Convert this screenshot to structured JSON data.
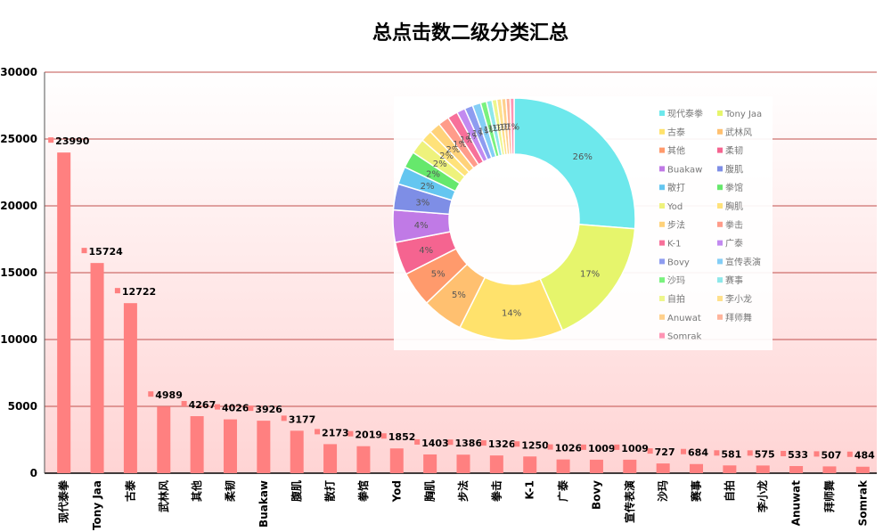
{
  "chart_data": [
    {
      "type": "bar",
      "title": "总点击数二级分类汇总",
      "ylim": [
        0,
        30000
      ],
      "yticks": [
        0,
        5000,
        10000,
        15000,
        20000,
        25000,
        30000
      ],
      "grid": true,
      "bar_color": "#ff8080",
      "grid_color": "#c0504d",
      "categories": [
        "现代泰拳",
        "Tony Jaa",
        "古泰",
        "武林风",
        "其他",
        "柔韧",
        "Buakaw",
        "腹肌",
        "散打",
        "拳馆",
        "Yod",
        "胸肌",
        "步法",
        "拳击",
        "K-1",
        "广泰",
        "Bovy",
        "宣传表演",
        "沙玛",
        "赛事",
        "自拍",
        "李小龙",
        "Anuwat",
        "拜师舞",
        "Somrak"
      ],
      "values": [
        23990,
        15724,
        12722,
        4989,
        4267,
        4026,
        3926,
        3177,
        2173,
        2019,
        1852,
        1403,
        1386,
        1326,
        1250,
        1026,
        1009,
        1009,
        727,
        684,
        581,
        575,
        533,
        507,
        484
      ],
      "value_labels": [
        "23990",
        "15724",
        "12722",
        "4989",
        "4267",
        "4026",
        "3926",
        "3177",
        "2173",
        "2019",
        "1852",
        "1403",
        "1386",
        "1326",
        "1250",
        "1026",
        "1009",
        "1009",
        "727",
        "684",
        "581",
        "575",
        "533",
        "507",
        "484"
      ]
    },
    {
      "type": "pie",
      "donut": true,
      "legend": "right",
      "categories": [
        "现代泰拳",
        "Tony Jaa",
        "古泰",
        "武林风",
        "其他",
        "柔韧",
        "Buakaw",
        "腹肌",
        "散打",
        "拳馆",
        "Yod",
        "胸肌",
        "步法",
        "拳击",
        "K-1",
        "广泰",
        "Bovy",
        "宣传表演",
        "沙玛",
        "赛事",
        "自拍",
        "李小龙",
        "Anuwat",
        "拜师舞",
        "Somrak"
      ],
      "values": [
        23990,
        15724,
        12722,
        4989,
        4267,
        4026,
        3926,
        3177,
        2173,
        2019,
        1852,
        1403,
        1386,
        1326,
        1250,
        1026,
        1009,
        1009,
        727,
        684,
        581,
        575,
        533,
        507,
        484
      ],
      "percent_labels": [
        "26%",
        "17%",
        "14%",
        "5%",
        "5%",
        "4%",
        "4%",
        "3%",
        "2%",
        "2%",
        "2%",
        "2%",
        "2%",
        "1%",
        "1%",
        "1%",
        "1%",
        "1%",
        "1%",
        "1%",
        "1%",
        "1%",
        "1%",
        "1%",
        "1%"
      ],
      "colors": [
        "#6de8ec",
        "#e6f56c",
        "#ffe26c",
        "#ffc070",
        "#ff9a6c",
        "#f56490",
        "#c07ae6",
        "#7e8ee6",
        "#64c6f0",
        "#66e86c",
        "#eef27c",
        "#ffe27a",
        "#ffd27a",
        "#ff9c8a",
        "#f7709a",
        "#c28af0",
        "#8e9cf0",
        "#84cef6",
        "#7af27e",
        "#8ee8ea",
        "#eef68c",
        "#ffe08c",
        "#ffd08c",
        "#ffb49c",
        "#ff94b4"
      ]
    }
  ]
}
